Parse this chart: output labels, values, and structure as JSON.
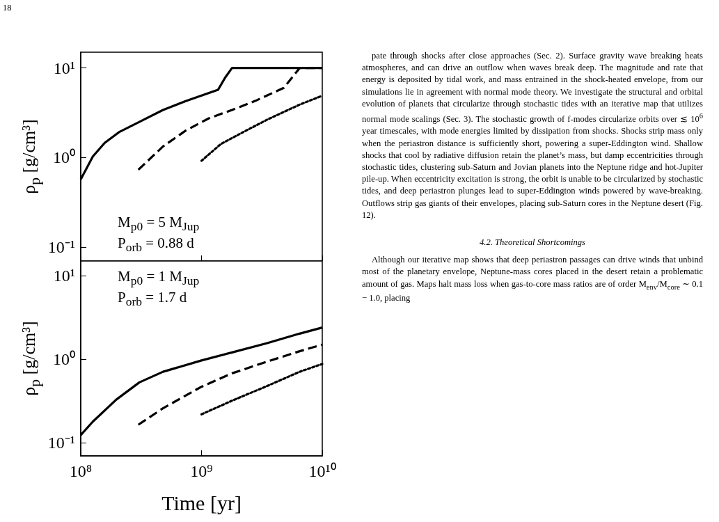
{
  "chart_data": [
    {
      "type": "line",
      "ylabel": "ρ$_{p}$ [g/cm³]",
      "log": "xy",
      "grid": false,
      "marker": "none",
      "tick_labels": "y",
      "xlim": [
        100000000,
        10000000000
      ],
      "xticks": [
        {
          "value": 100000000,
          "label": null
        },
        {
          "value": 1000000000,
          "label": null
        },
        {
          "value": 10000000000,
          "label": null
        }
      ],
      "ylim": [
        0.07,
        15
      ],
      "yticks": [
        {
          "value": 0.1,
          "label": "10⁻¹"
        },
        {
          "value": 1,
          "label": "10⁰"
        },
        {
          "value": 10,
          "label": "10¹"
        }
      ],
      "annotations": [
        "M$_{p0}$ = 5 M$_{Jup}$",
        "P$_{orb}$ = 0.88 d"
      ],
      "series": [
        {
          "color": "#000000",
          "line_style": "solid",
          "x": [
            100000000,
            126000000,
            158000000,
            210000000,
            306000000,
            480000000,
            740000000,
            1370000000,
            1570000000,
            1790000000,
            10000000000
          ],
          "values": [
            0.57,
            1.03,
            1.46,
            1.94,
            2.5,
            3.4,
            4.27,
            5.7,
            7.8,
            10,
            10
          ]
        },
        {
          "color": "#000000",
          "line_style": "dashed",
          "x": [
            300000000,
            480000000,
            740000000,
            1150000000,
            1790000000,
            2800000000,
            4800000000,
            6500000000,
            10000000000
          ],
          "values": [
            0.73,
            1.33,
            2.0,
            2.74,
            3.4,
            4.3,
            6.0,
            10,
            10
          ]
        },
        {
          "color": "#000000",
          "line_style": "dotted",
          "x": [
            1000000000,
            1440000000,
            2240000000,
            3500000000,
            6500000000,
            10000000000
          ],
          "values": [
            0.92,
            1.41,
            1.94,
            2.65,
            3.9,
            4.9
          ]
        }
      ]
    },
    {
      "type": "line",
      "ylabel": "ρ$_{p}$ [g/cm³]",
      "xlabel": "Time [yr]",
      "log": "xy",
      "grid": false,
      "marker": "none",
      "xlim": [
        100000000,
        10000000000
      ],
      "xticks": [
        {
          "value": 100000000,
          "label": "10⁸"
        },
        {
          "value": 1000000000,
          "label": "10⁹"
        },
        {
          "value": 10000000000,
          "label": "10¹⁰"
        }
      ],
      "ylim": [
        0.07,
        15
      ],
      "yticks": [
        {
          "value": 0.1,
          "label": "10⁻¹"
        },
        {
          "value": 1,
          "label": "10⁰"
        },
        {
          "value": 10,
          "label": "10¹"
        }
      ],
      "annotations": [
        "M$_{p0}$ = 1 M$_{Jup}$",
        "P$_{orb}$ = 1.7 d"
      ],
      "series": [
        {
          "color": "#000000",
          "line_style": "solid",
          "x": [
            100000000,
            126000000,
            197000000,
            306000000,
            480000000,
            1000000000,
            1790000000,
            3500000000,
            6500000000,
            10000000000
          ],
          "values": [
            0.124,
            0.18,
            0.33,
            0.53,
            0.71,
            0.97,
            1.21,
            1.56,
            2.03,
            2.4
          ]
        },
        {
          "color": "#000000",
          "line_style": "dashed",
          "x": [
            300000000,
            480000000,
            1000000000,
            1790000000,
            3500000000,
            6500000000,
            10000000000
          ],
          "values": [
            0.165,
            0.26,
            0.47,
            0.68,
            0.94,
            1.25,
            1.5
          ]
        },
        {
          "color": "#000000",
          "line_style": "dotted",
          "x": [
            1000000000,
            1790000000,
            3500000000,
            6500000000,
            10000000000
          ],
          "values": [
            0.22,
            0.32,
            0.48,
            0.71,
            0.88
          ]
        }
      ]
    },
    {
      "type": "other",
      "annotations": [
        "18",
        "pate through shocks after close approaches (Sec. 2). Surface gravity wave breaking heats atmospheres, and can drive an outflow when waves break deep. The magnitude and rate that energy is deposited by tidal work, and mass entrained in the shock-heated envelope, from our simulations lie in agreement with normal mode theory. We investigate the structural and orbital evolution of planets that circularize through stochastic tides with an iterative map that utilizes normal mode scalings (Sec. 3). The stochastic growth of f-modes circularize orbits over ≲ 10$^{6}$ year timescales, with mode energies limited by dissipation from shocks. Shocks strip mass only when the periastron distance is sufficiently short, powering a super-Eddington wind. Shallow shocks that cool by radiative diffusion retain the planet’s mass, but damp eccentricities through stochastic tides, clustering sub-Saturn and Jovian planets into the Neptune ridge and hot-Jupiter pile-up. When eccentricity excitation is strong, the orbit is unable to be circularized by stochastic tides, and deep periastron plunges lead to super-Eddington winds powered by wave-breaking. Outflows strip gas giants of their envelopes, placing sub-Saturn cores in the Neptune desert (Fig. 12).",
        "4.2. Theoretical Shortcomings",
        "Although our iterative map shows that deep periastron passages can drive winds that unbind most of the planetary envelope, Neptune-mass cores placed in the desert retain a problematic amount of gas. Maps halt mass loss when gas-to-core mass ratios are of order M$_{env}$/M$_{core}$ ∼ 0.1 − 1.0, placing"
      ]
    }
  ]
}
